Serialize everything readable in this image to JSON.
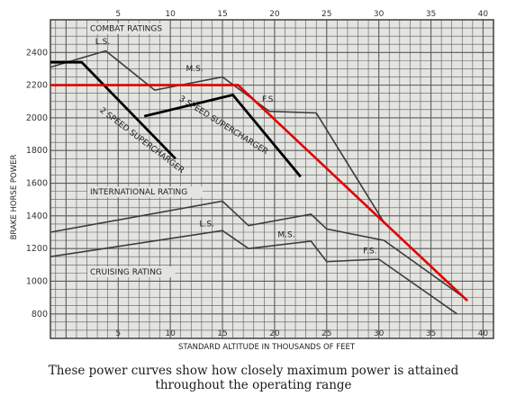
{
  "caption": {
    "line1": "These power curves show how closely maximum power is attained",
    "line2": "throughout the operating range"
  },
  "chart_data": {
    "type": "line",
    "title": "",
    "xlabel": "STANDARD ALTITUDE IN THOUSANDS OF FEET",
    "ylabel": "BRAKE HORSE POWER",
    "xlim": [
      -1.5,
      41
    ],
    "ylim": [
      650,
      2600
    ],
    "x_ticks": [
      5,
      10,
      15,
      20,
      25,
      30,
      35,
      40
    ],
    "y_ticks": [
      800,
      1000,
      1200,
      1400,
      1600,
      1800,
      2000,
      2200,
      2400
    ],
    "grid": true,
    "colors": {
      "background": "#e4e4e0",
      "grid": "#5a5a5a",
      "printed": "#3c3c3c",
      "overlay_black": "#000000",
      "overlay_red": "#e00000"
    },
    "section_labels": {
      "combat": "COMBAT RATINGS",
      "international": "INTERNATIONAL RATING",
      "cruising": "CRUISING RATING"
    },
    "series": [
      {
        "group": "combat",
        "style": "printed",
        "x": [
          -1.5,
          3.8,
          8.5,
          15,
          19.5,
          24,
          30.5
        ],
        "y": [
          2310,
          2410,
          2170,
          2250,
          2040,
          2030,
          1360
        ]
      },
      {
        "group": "international",
        "style": "printed",
        "x": [
          -1.5,
          15,
          17.5,
          23.5,
          25,
          30.5,
          38.5
        ],
        "y": [
          1300,
          1490,
          1340,
          1410,
          1320,
          1250,
          885
        ]
      },
      {
        "group": "cruising",
        "style": "printed",
        "x": [
          -1.5,
          15,
          17.5,
          23.5,
          25,
          30,
          37.5
        ],
        "y": [
          1150,
          1310,
          1200,
          1245,
          1120,
          1135,
          800
        ]
      },
      {
        "name": "2 SPEED SUPERCHARGER",
        "style": "overlay_black",
        "x": [
          -1.5,
          1.5,
          10.5
        ],
        "y": [
          2340,
          2340,
          1750
        ]
      },
      {
        "name": "3 SPEED SUPERCHARGER",
        "style": "overlay_black",
        "x": [
          7.5,
          16,
          22.5
        ],
        "y": [
          2010,
          2140,
          1640
        ]
      },
      {
        "style": "overlay_red",
        "x": [
          -1.5,
          16.5,
          38.5
        ],
        "y": [
          2200,
          2200,
          880
        ]
      }
    ],
    "annotations": [
      {
        "text": "L.S.",
        "x": 2.8,
        "y": 2450,
        "rotate": 0
      },
      {
        "text": "M.S.",
        "x": 11.5,
        "y": 2285,
        "rotate": 0
      },
      {
        "text": "F.S.",
        "x": 18.8,
        "y": 2100,
        "rotate": 0
      },
      {
        "text": "2 SPEED SUPERCHARGER",
        "x": 3.2,
        "y": 2040,
        "rotate": 37
      },
      {
        "text": "3 SPEED SUPERCHARGER",
        "x": 10.8,
        "y": 2110,
        "rotate": 32
      },
      {
        "text": "L.S.",
        "x": 12.8,
        "y": 1335,
        "rotate": 0
      },
      {
        "text": "M.S.",
        "x": 20.3,
        "y": 1270,
        "rotate": 0
      },
      {
        "text": "F.S.",
        "x": 28.5,
        "y": 1170,
        "rotate": 0
      }
    ]
  }
}
